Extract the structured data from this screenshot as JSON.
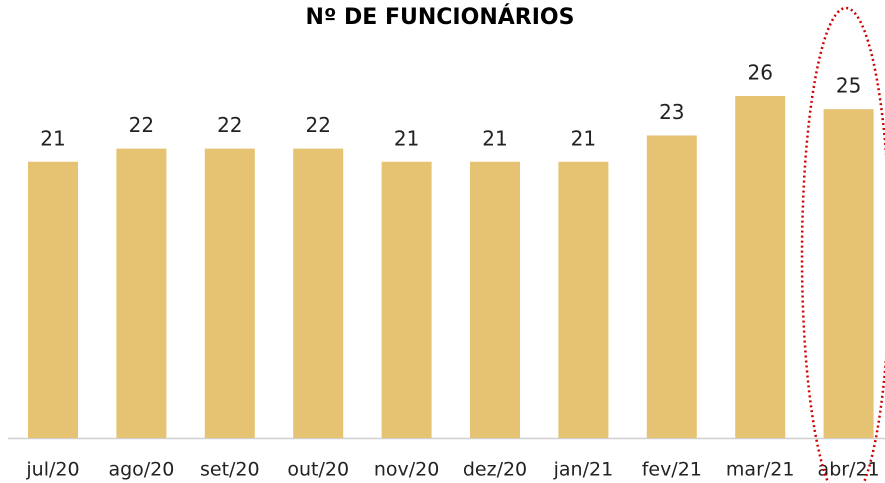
{
  "chart_data": {
    "type": "bar",
    "title": "Nº DE FUNCIONÁRIOS",
    "categories": [
      "jul/20",
      "ago/20",
      "set/20",
      "out/20",
      "nov/20",
      "dez/20",
      "jan/21",
      "fev/21",
      "mar/21",
      "abr/21"
    ],
    "values": [
      21,
      22,
      22,
      22,
      21,
      21,
      21,
      23,
      26,
      25
    ],
    "color": "#e6c373"
  }
}
